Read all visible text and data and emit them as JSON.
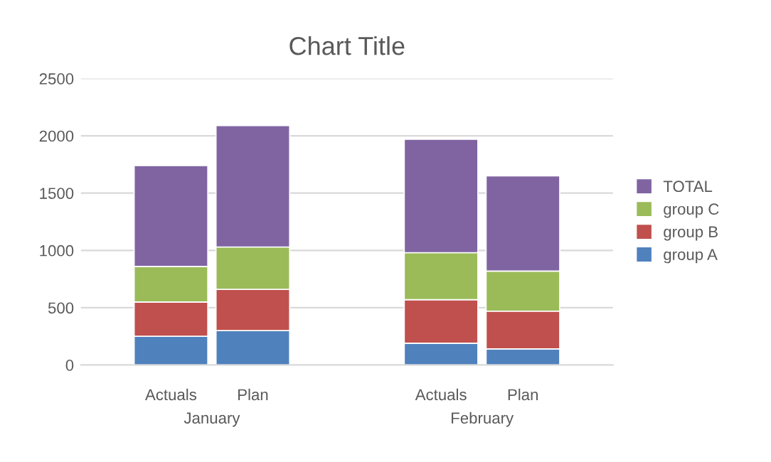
{
  "chart_data": {
    "type": "bar",
    "title": "Chart Title",
    "stacked": true,
    "categories": [
      "Actuals",
      "Plan",
      "Actuals",
      "Plan"
    ],
    "annotations": [
      "January",
      "February"
    ],
    "series": [
      {
        "name": "group A",
        "color": "#4f81bd",
        "values": [
          250,
          300,
          190,
          140
        ]
      },
      {
        "name": "group B",
        "color": "#c0504d",
        "values": [
          300,
          360,
          380,
          330
        ]
      },
      {
        "name": "group C",
        "color": "#9bbb59",
        "values": [
          310,
          370,
          410,
          350
        ]
      },
      {
        "name": "TOTAL",
        "color": "#8064a2",
        "values": [
          880,
          1060,
          990,
          830
        ]
      }
    ],
    "ylim": [
      0,
      2500
    ],
    "yticks": [
      0,
      500,
      1000,
      1500,
      2000,
      2500
    ],
    "grid": "y",
    "legend": "right"
  }
}
